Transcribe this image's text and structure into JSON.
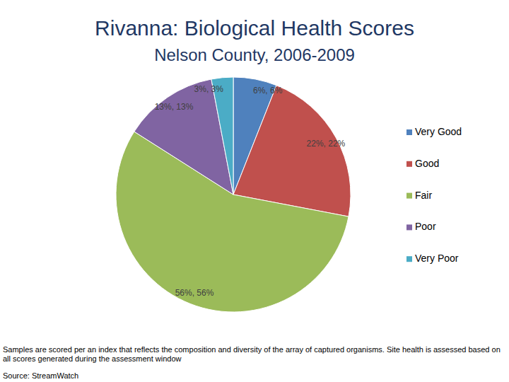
{
  "chart_data": {
    "type": "pie",
    "title": "Rivanna: Biological Health Scores",
    "subtitle": "Nelson County, 2006-2009",
    "categories": [
      "Very Good",
      "Good",
      "Fair",
      "Poor",
      "Very Poor"
    ],
    "values": [
      6,
      22,
      56,
      13,
      3
    ],
    "value_labels": [
      "6%, 6%",
      "22%, 22%",
      "56%, 56%",
      "13%, 13%",
      "3%, 3%"
    ],
    "colors": [
      "#4f81bd",
      "#c0504d",
      "#9bbb59",
      "#8064a2",
      "#4bacc6"
    ],
    "data_labels": true,
    "legend": "right",
    "annotations": [
      "Samples are scored per an index that reflects the composition and diversity of the array of captured organisms. Site health is assessed based on all scores generated during the assessment window",
      "Source: StreamWatch"
    ]
  }
}
